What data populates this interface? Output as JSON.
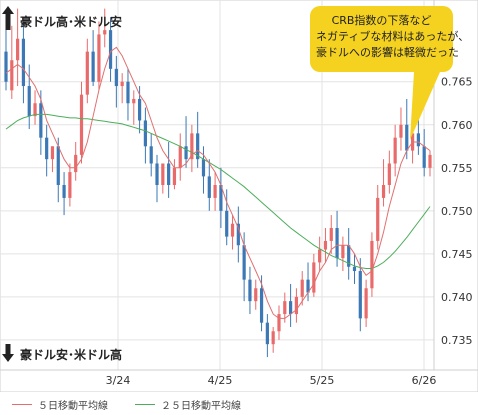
{
  "chart_data": {
    "type": "candlestick",
    "title": "",
    "top_label": "豪ドル高･米ドル安",
    "bottom_label": "豪ドル安･米ドル高",
    "x_tick_labels": [
      "3/24",
      "4/25",
      "5/25",
      "6/26"
    ],
    "y_tick_labels": [
      "0.735",
      "0.740",
      "0.745",
      "0.750",
      "0.755",
      "0.760",
      "0.765"
    ],
    "ylim": [
      0.7315,
      0.7745
    ],
    "grid": true,
    "callout_lines": [
      "CRB指数の下落など",
      "ネガティブな材料はあったが、",
      "豪ドルへの影響は軽微だった"
    ],
    "legend": [
      {
        "name": "５日移動平均線",
        "color": "#e07070"
      },
      {
        "name": "２５日移動平均線",
        "color": "#4cae5a"
      }
    ],
    "colors": {
      "up": "#e96a6a",
      "down": "#3b78b5",
      "ma5": "#e07070",
      "ma25": "#4cae5a",
      "grid": "#e3e3e3",
      "callout": "#f5d21f"
    },
    "candles": [
      [
        0.7685,
        0.7715,
        0.765,
        0.764
      ],
      [
        0.764,
        0.7715,
        0.7675,
        0.763
      ],
      [
        0.7675,
        0.7735,
        0.77,
        0.7645
      ],
      [
        0.77,
        0.772,
        0.7645,
        0.7625
      ],
      [
        0.7645,
        0.767,
        0.761,
        0.7595
      ],
      [
        0.761,
        0.764,
        0.7625,
        0.76
      ],
      [
        0.7625,
        0.764,
        0.7585,
        0.7565
      ],
      [
        0.7585,
        0.76,
        0.756,
        0.754
      ],
      [
        0.756,
        0.7575,
        0.7575,
        0.7545
      ],
      [
        0.7575,
        0.7585,
        0.753,
        0.751
      ],
      [
        0.753,
        0.7545,
        0.7515,
        0.7495
      ],
      [
        0.7515,
        0.7555,
        0.7545,
        0.7505
      ],
      [
        0.7545,
        0.758,
        0.7565,
        0.7535
      ],
      [
        0.7565,
        0.765,
        0.7635,
        0.7555
      ],
      [
        0.7635,
        0.77,
        0.7685,
        0.7625
      ],
      [
        0.7685,
        0.771,
        0.765,
        0.7645
      ],
      [
        0.765,
        0.772,
        0.7705,
        0.764
      ],
      [
        0.7705,
        0.7735,
        0.771,
        0.769
      ],
      [
        0.771,
        0.7725,
        0.7665,
        0.765
      ],
      [
        0.7665,
        0.768,
        0.7645,
        0.762
      ],
      [
        0.7645,
        0.766,
        0.765,
        0.7625
      ],
      [
        0.765,
        0.7665,
        0.7625,
        0.7605
      ],
      [
        0.7625,
        0.764,
        0.763,
        0.76
      ],
      [
        0.763,
        0.7645,
        0.7605,
        0.759
      ],
      [
        0.7605,
        0.762,
        0.7575,
        0.7555
      ],
      [
        0.7575,
        0.759,
        0.7555,
        0.754
      ],
      [
        0.7555,
        0.7565,
        0.753,
        0.751
      ],
      [
        0.753,
        0.7545,
        0.7555,
        0.752
      ],
      [
        0.7555,
        0.758,
        0.753,
        0.7515
      ],
      [
        0.753,
        0.756,
        0.755,
        0.7525
      ],
      [
        0.755,
        0.759,
        0.7575,
        0.7535
      ],
      [
        0.7575,
        0.761,
        0.756,
        0.755
      ],
      [
        0.756,
        0.76,
        0.759,
        0.7545
      ],
      [
        0.759,
        0.7615,
        0.756,
        0.755
      ],
      [
        0.756,
        0.7575,
        0.754,
        0.752
      ],
      [
        0.754,
        0.756,
        0.7515,
        0.75
      ],
      [
        0.7515,
        0.7545,
        0.753,
        0.75
      ],
      [
        0.753,
        0.755,
        0.75,
        0.748
      ],
      [
        0.75,
        0.7525,
        0.747,
        0.746
      ],
      [
        0.747,
        0.7495,
        0.7485,
        0.7455
      ],
      [
        0.7485,
        0.7505,
        0.746,
        0.744
      ],
      [
        0.746,
        0.7475,
        0.742,
        0.7395
      ],
      [
        0.742,
        0.7435,
        0.7395,
        0.738
      ],
      [
        0.7395,
        0.742,
        0.741,
        0.7385
      ],
      [
        0.741,
        0.7425,
        0.737,
        0.736
      ],
      [
        0.737,
        0.738,
        0.7345,
        0.733
      ],
      [
        0.7345,
        0.7365,
        0.736,
        0.7335
      ],
      [
        0.736,
        0.739,
        0.738,
        0.735
      ],
      [
        0.738,
        0.7405,
        0.7395,
        0.737
      ],
      [
        0.7395,
        0.7415,
        0.738,
        0.7365
      ],
      [
        0.738,
        0.741,
        0.74,
        0.737
      ],
      [
        0.74,
        0.743,
        0.742,
        0.739
      ],
      [
        0.742,
        0.744,
        0.7405,
        0.7395
      ],
      [
        0.7405,
        0.745,
        0.744,
        0.74
      ],
      [
        0.744,
        0.747,
        0.7455,
        0.743
      ],
      [
        0.7455,
        0.748,
        0.7465,
        0.744
      ],
      [
        0.7465,
        0.7495,
        0.748,
        0.745
      ],
      [
        0.748,
        0.75,
        0.7445,
        0.7435
      ],
      [
        0.7445,
        0.747,
        0.746,
        0.743
      ],
      [
        0.746,
        0.748,
        0.7435,
        0.742
      ],
      [
        0.7435,
        0.745,
        0.743,
        0.7415
      ],
      [
        0.743,
        0.7445,
        0.7375,
        0.736
      ],
      [
        0.7375,
        0.742,
        0.741,
        0.7365
      ],
      [
        0.741,
        0.7475,
        0.7465,
        0.74
      ],
      [
        0.7465,
        0.753,
        0.7515,
        0.7455
      ],
      [
        0.7515,
        0.756,
        0.753,
        0.7505
      ],
      [
        0.753,
        0.757,
        0.7555,
        0.752
      ],
      [
        0.7555,
        0.76,
        0.7585,
        0.754
      ],
      [
        0.7585,
        0.762,
        0.76,
        0.757
      ],
      [
        0.76,
        0.763,
        0.757,
        0.756
      ],
      [
        0.757,
        0.76,
        0.759,
        0.7555
      ],
      [
        0.759,
        0.7615,
        0.7575,
        0.7565
      ],
      [
        0.7575,
        0.7595,
        0.755,
        0.754
      ],
      [
        0.755,
        0.757,
        0.7565,
        0.754
      ]
    ],
    "ma5": [
      0.766,
      0.7665,
      0.767,
      0.7665,
      0.7655,
      0.7645,
      0.763,
      0.7605,
      0.759,
      0.7575,
      0.756,
      0.755,
      0.755,
      0.756,
      0.758,
      0.761,
      0.764,
      0.7665,
      0.7685,
      0.769,
      0.768,
      0.7665,
      0.765,
      0.7635,
      0.7625,
      0.7605,
      0.7585,
      0.757,
      0.756,
      0.755,
      0.755,
      0.7555,
      0.7565,
      0.757,
      0.7565,
      0.7555,
      0.7545,
      0.753,
      0.751,
      0.7495,
      0.748,
      0.746,
      0.7445,
      0.743,
      0.7415,
      0.7395,
      0.738,
      0.7375,
      0.7375,
      0.738,
      0.7385,
      0.7395,
      0.7405,
      0.7415,
      0.743,
      0.744,
      0.7455,
      0.746,
      0.746,
      0.746,
      0.745,
      0.7435,
      0.7425,
      0.743,
      0.745,
      0.7475,
      0.7505,
      0.753,
      0.7555,
      0.757,
      0.758,
      0.758,
      0.7575,
      0.757
    ],
    "ma25": [
      0.7595,
      0.76,
      0.7605,
      0.7608,
      0.761,
      0.7612,
      0.7612,
      0.7612,
      0.7611,
      0.761,
      0.7609,
      0.7608,
      0.7608,
      0.7607,
      0.7607,
      0.7606,
      0.7605,
      0.7604,
      0.7603,
      0.7602,
      0.7601,
      0.7599,
      0.7597,
      0.7595,
      0.7593,
      0.759,
      0.7587,
      0.7584,
      0.7581,
      0.7578,
      0.7575,
      0.7571,
      0.7568,
      0.7564,
      0.756,
      0.7556,
      0.7552,
      0.7548,
      0.7543,
      0.7538,
      0.7533,
      0.7528,
      0.7522,
      0.7516,
      0.751,
      0.7504,
      0.7498,
      0.7492,
      0.7486,
      0.748,
      0.7475,
      0.747,
      0.7465,
      0.746,
      0.7456,
      0.7452,
      0.7448,
      0.7445,
      0.7442,
      0.7439,
      0.7436,
      0.7434,
      0.7433,
      0.7433,
      0.7436,
      0.744,
      0.7446,
      0.7453,
      0.7461,
      0.7469,
      0.7478,
      0.7487,
      0.7496,
      0.7505
    ]
  }
}
